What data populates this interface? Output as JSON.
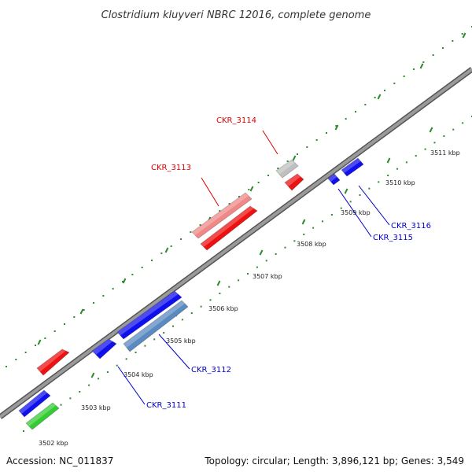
{
  "title": "Clostridium kluyveri NBRC 12016, complete genome",
  "accession": "Accession: NC_011837",
  "summary": "Topology: circular; Length: 3,896,121 bp; Genes: 3,549",
  "colors": {
    "backbone": "#808080",
    "tick_dot": "#2e8b2e",
    "red": "#ee1111",
    "pink": "#f08888",
    "blue": "#1010ee",
    "steelblue": "#5a8ac0",
    "grey": "#c0c0c0",
    "green": "#33cc33",
    "label_red": "#dd0000",
    "label_blue": "#0000cc"
  },
  "ticks": [
    {
      "label": "3502 kbp",
      "kbp": 3502
    },
    {
      "label": "3503 kbp",
      "kbp": 3503
    },
    {
      "label": "3504 kbp",
      "kbp": 3504
    },
    {
      "label": "3505 kbp",
      "kbp": 3505
    },
    {
      "label": "3506 kbp",
      "kbp": 3506
    },
    {
      "label": "3507 kbp",
      "kbp": 3507
    },
    {
      "label": "3508 kbp",
      "kbp": 3508
    },
    {
      "label": "3509 kbp",
      "kbp": 3509
    },
    {
      "label": "3510 kbp",
      "kbp": 3510
    },
    {
      "label": "3511 kbp",
      "kbp": 3511
    }
  ],
  "genes": [
    {
      "id": "gene-outer-red-1",
      "color": "red",
      "labeled": false
    },
    {
      "id": "gene-ckr3113",
      "color": "red",
      "labeled": false
    },
    {
      "id": "gene-ckr3113-pink",
      "color": "pink",
      "labeled": false
    },
    {
      "id": "gene-ckr3114-red",
      "color": "red",
      "labeled": false
    },
    {
      "id": "gene-ckr3114-grey",
      "color": "grey",
      "labeled": false
    },
    {
      "id": "gene-blue-1",
      "color": "blue",
      "labeled": false
    },
    {
      "id": "gene-green-1",
      "color": "green",
      "labeled": false
    },
    {
      "id": "gene-ckr3111",
      "color": "blue",
      "labeled": false
    },
    {
      "id": "gene-ckr3112-blue",
      "color": "blue",
      "labeled": false
    },
    {
      "id": "gene-ckr3112-steel",
      "color": "steelblue",
      "labeled": false
    },
    {
      "id": "gene-ckr3115",
      "color": "blue",
      "labeled": false
    },
    {
      "id": "gene-ckr3116",
      "color": "blue",
      "labeled": false
    }
  ],
  "labels": [
    {
      "text": "CKR_3113",
      "color": "label_red"
    },
    {
      "text": "CKR_3114",
      "color": "label_red"
    },
    {
      "text": "CKR_3111",
      "color": "label_blue"
    },
    {
      "text": "CKR_3112",
      "color": "label_blue"
    },
    {
      "text": "CKR_3115",
      "color": "label_blue"
    },
    {
      "text": "CKR_3116",
      "color": "label_blue"
    }
  ]
}
